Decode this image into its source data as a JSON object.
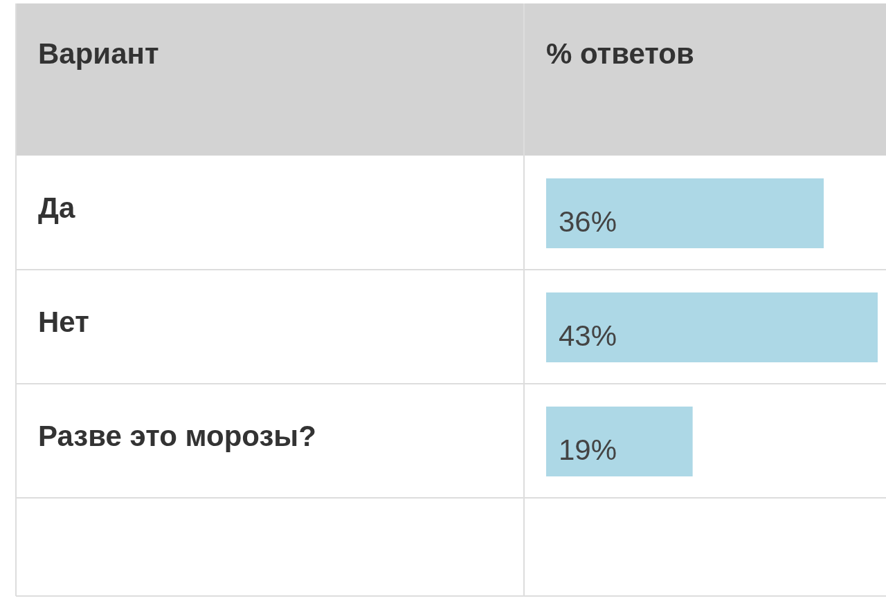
{
  "chart_data": {
    "type": "bar",
    "orientation": "horizontal",
    "ylabel": "Вариант",
    "xlabel": "% ответов",
    "categories": [
      "Да",
      "Нет",
      "Разве это морозы?",
      null
    ],
    "values": [
      36,
      43,
      19,
      null
    ],
    "value_labels": [
      "36%",
      "43%",
      "19%",
      null
    ],
    "color": "#add8e6"
  }
}
